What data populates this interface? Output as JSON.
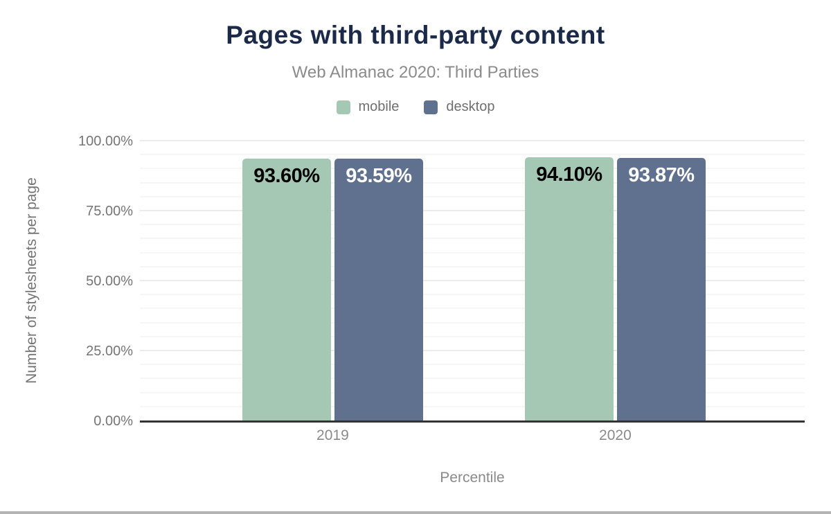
{
  "header": {
    "title": "Pages with third-party content",
    "subtitle": "Web Almanac 2020: Third Parties"
  },
  "colors": {
    "title": "#1b2a49",
    "subtitle": "#8b8b8b",
    "axis_text": "#757575",
    "axis_line": "#333333",
    "gridline_minor": "#f6f6f6",
    "gridline_major": "#ececec",
    "page_divider": "#b4b4b4"
  },
  "chart_data": {
    "type": "bar",
    "title": "Pages with third-party content",
    "subtitle": "Web Almanac 2020: Third Parties",
    "categories": [
      "2019",
      "2020"
    ],
    "series": [
      {
        "name": "mobile",
        "color": "#a5c8b5",
        "label_color": "#000000",
        "values": [
          93.6,
          94.1
        ],
        "labels": [
          "93.60%",
          "94.10%"
        ]
      },
      {
        "name": "desktop",
        "color": "#607190",
        "label_color": "#ffffff",
        "values": [
          93.59,
          93.87
        ],
        "labels": [
          "93.59%",
          "93.87%"
        ]
      }
    ],
    "xlabel": "Percentile",
    "ylabel": "Number of stylesheets per page",
    "ylim": [
      0,
      100
    ],
    "yticks": [
      {
        "value": 0,
        "label": "0.00%"
      },
      {
        "value": 25,
        "label": "25.00%"
      },
      {
        "value": 50,
        "label": "50.00%"
      },
      {
        "value": 75,
        "label": "75.00%"
      },
      {
        "value": 100,
        "label": "100.00%"
      }
    ],
    "grid": {
      "minor_step": 5,
      "major_step": 25
    },
    "legend_position": "top"
  }
}
